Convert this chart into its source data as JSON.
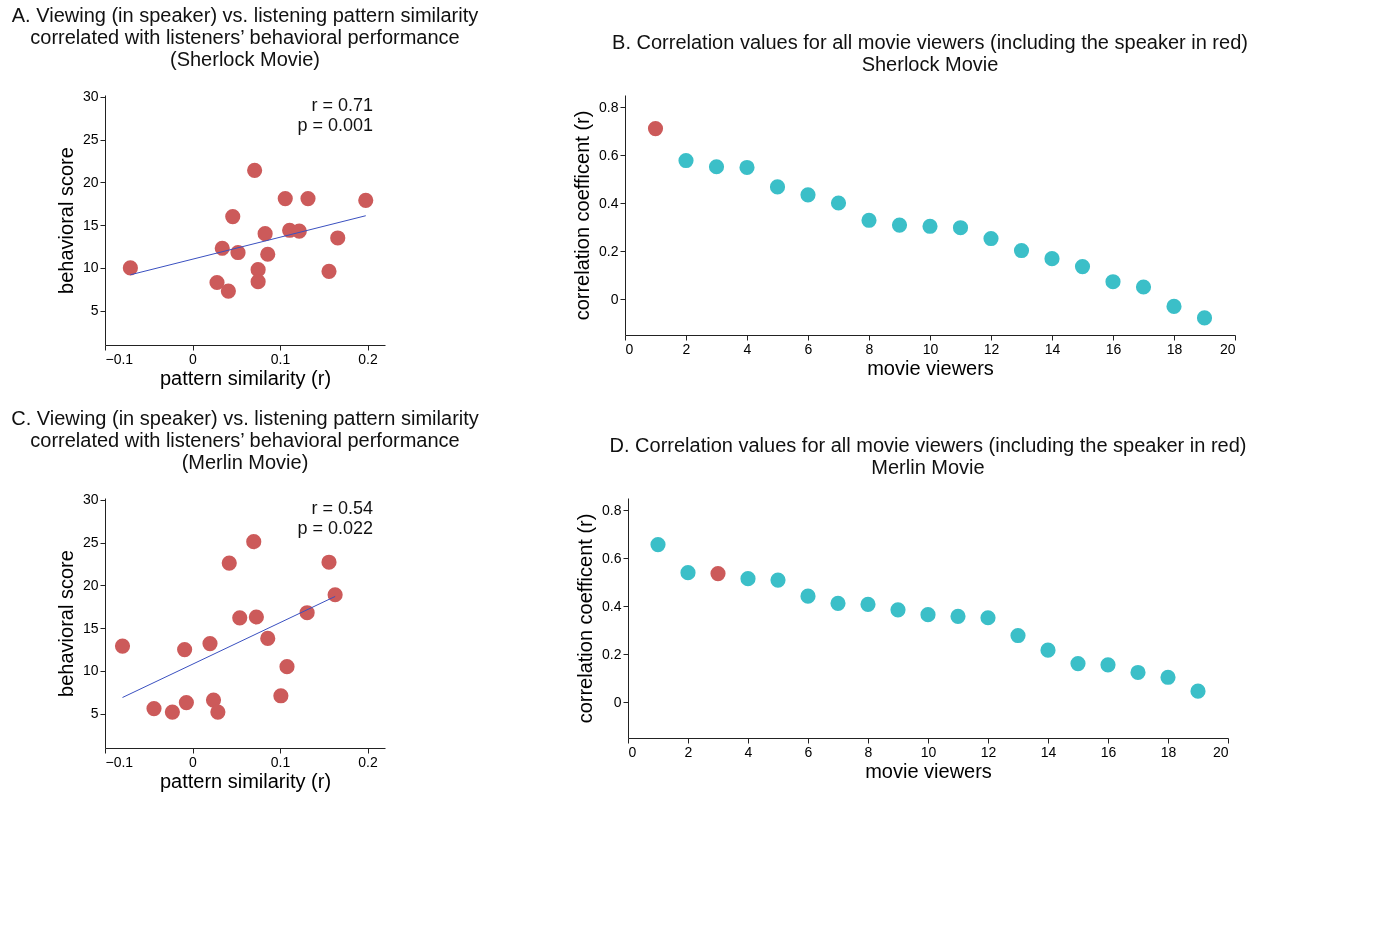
{
  "chart_data": [
    {
      "type": "scatter",
      "title": "A.  Viewing (in speaker) vs. listening pattern similarity\ncorrelated with listeners’ behavioral performance\n(Sherlock Movie)",
      "xlabel": "pattern similarity (r)",
      "ylabel": "behavioral score",
      "xlim": [
        -0.1,
        0.22
      ],
      "ylim": [
        1,
        30.2
      ],
      "xticks": [
        -0.1,
        0,
        0.1,
        0.2
      ],
      "yticks": [
        5,
        10,
        15,
        20,
        25,
        30
      ],
      "grid": false,
      "legend": false,
      "annotations": [
        "r = 0.71",
        "p = 0.001"
      ],
      "series": [
        {
          "type": "scatter",
          "marker": "circle",
          "color": "#cc5a5a",
          "x": [
            -0.071,
            0.071,
            0.106,
            0.132,
            0.198,
            0.046,
            0.083,
            0.111,
            0.122,
            0.166,
            0.034,
            0.052,
            0.086,
            0.075,
            0.156,
            0.028,
            0.075,
            0.041
          ],
          "values": [
            10.0,
            21.4,
            18.1,
            18.1,
            17.9,
            16.0,
            14.0,
            14.4,
            14.3,
            13.5,
            12.3,
            11.8,
            11.6,
            9.8,
            9.6,
            8.3,
            8.4,
            7.3
          ]
        },
        {
          "type": "line",
          "color": "#3a50c0",
          "x": [
            -0.071,
            0.198
          ],
          "values": [
            9.2,
            16.1
          ]
        }
      ]
    },
    {
      "type": "scatter",
      "title": "B.  Correlation values for all movie viewers (including the speaker in red)\nSherlock Movie",
      "xlabel": "movie viewers",
      "ylabel": "correlation coefficent (r)",
      "xlim": [
        0,
        20
      ],
      "ylim": [
        -0.15,
        0.85
      ],
      "xticks": [
        0,
        2,
        4,
        6,
        8,
        10,
        12,
        14,
        16,
        18,
        20
      ],
      "yticks": [
        0,
        0.2,
        0.4,
        0.6,
        0.8
      ],
      "grid": false,
      "legend": false,
      "marker": "circle",
      "series": [
        {
          "type": "scatter",
          "color": "#cc5a5a",
          "x": [
            1
          ],
          "values": [
            0.71
          ]
        },
        {
          "type": "scatter",
          "color": "#3bbfc8",
          "x": [
            2,
            3,
            4,
            5,
            6,
            7,
            8,
            9,
            10,
            11,
            12,
            13,
            14,
            15,
            16,
            17,
            18,
            19
          ],
          "values": [
            0.577,
            0.551,
            0.548,
            0.467,
            0.434,
            0.4,
            0.328,
            0.308,
            0.303,
            0.297,
            0.252,
            0.202,
            0.168,
            0.135,
            0.072,
            0.05,
            -0.031,
            -0.079
          ]
        }
      ]
    },
    {
      "type": "scatter",
      "title": "C.   Viewing (in speaker) vs. listening pattern similarity\ncorrelated with listeners’ behavioral performance\n(Merlin Movie)",
      "xlabel": "pattern similarity (r)",
      "ylabel": "behavioral score",
      "xlim": [
        -0.1,
        0.22
      ],
      "ylim": [
        1,
        30.2
      ],
      "xticks": [
        -0.1,
        0,
        0.1,
        0.2
      ],
      "yticks": [
        5,
        10,
        15,
        20,
        25,
        30
      ],
      "grid": false,
      "legend": false,
      "annotations": [
        "r = 0.54",
        "p = 0.022"
      ],
      "series": [
        {
          "type": "scatter",
          "marker": "circle",
          "color": "#cc5a5a",
          "x": [
            -0.08,
            -0.044,
            -0.023,
            -0.007,
            -0.009,
            0.02,
            0.024,
            0.029,
            0.042,
            0.054,
            0.073,
            0.07,
            0.086,
            0.101,
            0.108,
            0.131,
            0.156,
            0.163
          ],
          "values": [
            12.9,
            5.6,
            5.2,
            6.3,
            12.5,
            13.2,
            6.6,
            5.2,
            22.6,
            16.2,
            16.3,
            25.1,
            13.8,
            7.1,
            10.5,
            16.8,
            22.7,
            18.9
          ]
        },
        {
          "type": "line",
          "color": "#3a50c0",
          "x": [
            -0.08,
            0.163
          ],
          "values": [
            6.9,
            18.7
          ]
        }
      ]
    },
    {
      "type": "scatter",
      "title": "D.  Correlation values for all movie viewers (including the speaker in red)\nMerlin Movie",
      "xlabel": "movie viewers",
      "ylabel": "correlation coefficent (r)",
      "xlim": [
        0,
        20
      ],
      "ylim": [
        -0.15,
        0.85
      ],
      "xticks": [
        0,
        2,
        4,
        6,
        8,
        10,
        12,
        14,
        16,
        18,
        20
      ],
      "yticks": [
        0,
        0.2,
        0.4,
        0.6,
        0.8
      ],
      "grid": false,
      "legend": false,
      "marker": "circle",
      "series": [
        {
          "type": "scatter",
          "color": "#3bbfc8",
          "x": [
            1,
            2,
            4,
            5,
            6,
            7,
            8,
            9,
            10,
            11,
            12,
            13,
            14,
            15,
            16,
            17,
            18,
            19
          ],
          "values": [
            0.656,
            0.539,
            0.514,
            0.508,
            0.441,
            0.411,
            0.407,
            0.384,
            0.364,
            0.357,
            0.351,
            0.277,
            0.216,
            0.16,
            0.155,
            0.123,
            0.103,
            0.045
          ]
        },
        {
          "type": "scatter",
          "color": "#cc5a5a",
          "x": [
            3
          ],
          "values": [
            0.535
          ]
        }
      ]
    }
  ]
}
